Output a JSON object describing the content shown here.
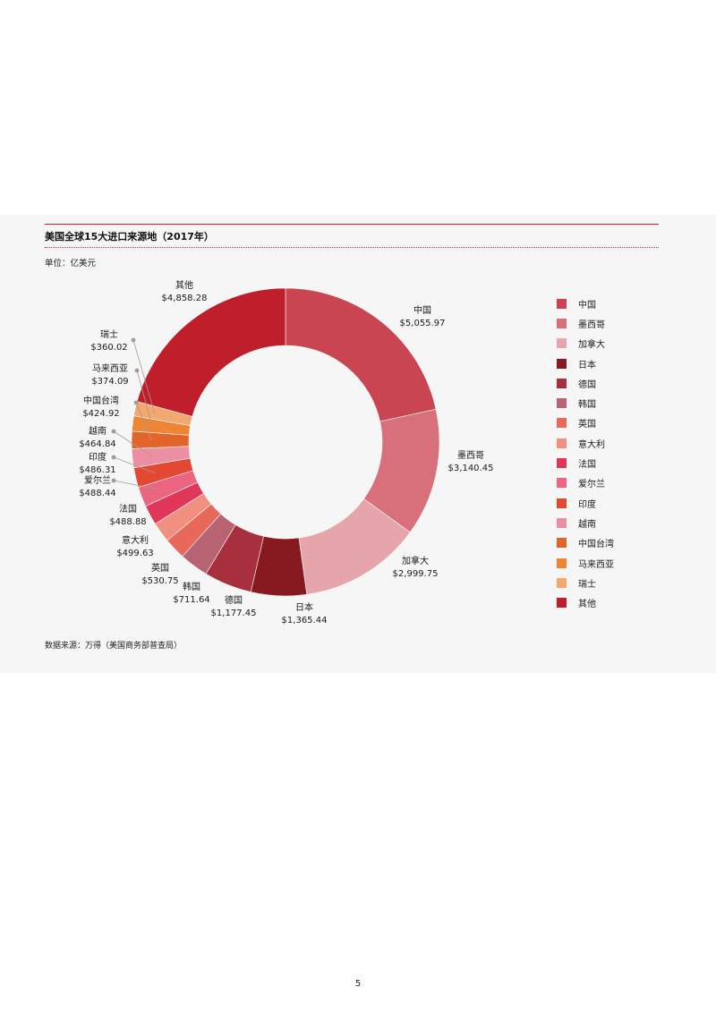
{
  "page": {
    "title": "美国全球15大进口来源地（2017年）",
    "unit": "单位：亿美元",
    "source": "数据来源：万得（美国商务部普查局）",
    "page_number": "5",
    "accent_color": "#c8242f"
  },
  "chart_data": {
    "type": "pie",
    "subtype": "donut",
    "title": "美国全球15大进口来源地（2017年）",
    "unit": "单位：亿美元",
    "legend_position": "right",
    "slices": [
      {
        "name": "中国",
        "value": 5055.97,
        "label": "$5,055.97",
        "color": "#c94552"
      },
      {
        "name": "墨西哥",
        "value": 3140.45,
        "label": "$3,140.45",
        "color": "#d8707c"
      },
      {
        "name": "加拿大",
        "value": 2999.75,
        "label": "$2,999.75",
        "color": "#e6a5ab"
      },
      {
        "name": "日本",
        "value": 1365.44,
        "label": "$1,365.44",
        "color": "#871a20"
      },
      {
        "name": "德国",
        "value": 1177.45,
        "label": "$1,177.45",
        "color": "#a8303e"
      },
      {
        "name": "韩国",
        "value": 711.64,
        "label": "$711.64",
        "color": "#b86372"
      },
      {
        "name": "英国",
        "value": 530.75,
        "label": "$530.75",
        "color": "#e8695a"
      },
      {
        "name": "意大利",
        "value": 499.63,
        "label": "$499.63",
        "color": "#ef9080"
      },
      {
        "name": "法国",
        "value": 488.88,
        "label": "$488.88",
        "color": "#e1365a"
      },
      {
        "name": "爱尔兰",
        "value": 488.44,
        "label": "$488.44",
        "color": "#eb6580"
      },
      {
        "name": "印度",
        "value": 486.31,
        "label": "$486.31",
        "color": "#e34832"
      },
      {
        "name": "越南",
        "value": 464.84,
        "label": "$464.84",
        "color": "#ec8fa2"
      },
      {
        "name": "中国台湾",
        "value": 424.92,
        "label": "$424.92",
        "color": "#e3642b"
      },
      {
        "name": "马来西亚",
        "value": 374.09,
        "label": "$374.09",
        "color": "#ee8535"
      },
      {
        "name": "瑞士",
        "value": 360.02,
        "label": "$360.02",
        "color": "#f2a86e"
      },
      {
        "name": "其他",
        "value": 4858.28,
        "label": "$4,858.28",
        "color": "#bf1f2b"
      }
    ]
  }
}
